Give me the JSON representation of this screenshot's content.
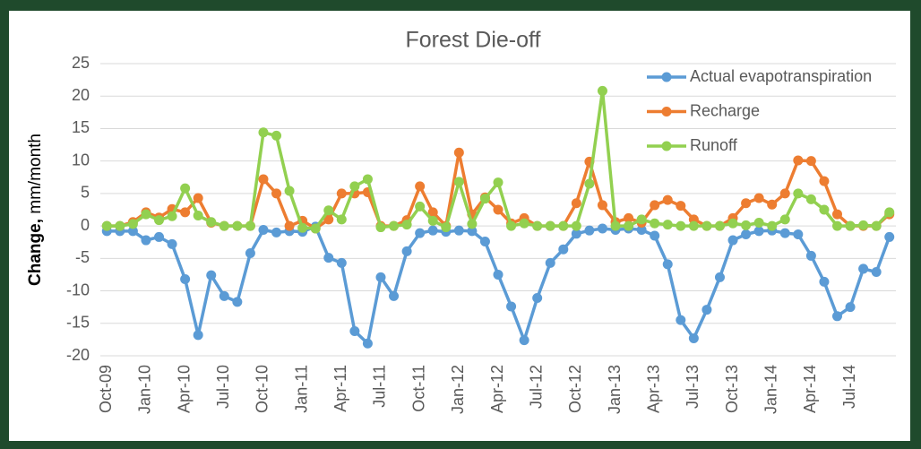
{
  "chart_data": {
    "type": "line",
    "title": "Forest Die-off",
    "y_label_bold": "Change,",
    "y_label": "mm/month",
    "categories": [
      "Oct-09",
      null,
      null,
      "Jan-10",
      null,
      null,
      "Apr-10",
      null,
      null,
      "Jul-10",
      null,
      null,
      "Oct-10",
      null,
      null,
      "Jan-11",
      null,
      null,
      "Apr-11",
      null,
      null,
      "Jul-11",
      null,
      null,
      "Oct-11",
      null,
      null,
      "Jan-12",
      null,
      null,
      "Apr-12",
      null,
      null,
      "Jul-12",
      null,
      null,
      "Oct-12",
      null,
      null,
      "Jan-13",
      null,
      null,
      "Apr-13",
      null,
      null,
      "Jul-13",
      null,
      null,
      "Oct-13",
      null,
      null,
      "Jan-14",
      null,
      null,
      "Apr-14",
      null,
      null,
      "Jul-14",
      null,
      null,
      null
    ],
    "series": [
      {
        "name": "Actual evapotranspiration",
        "color": "#5b9bd5",
        "values": [
          -0.8,
          -0.8,
          -0.8,
          -2.2,
          -1.7,
          -2.8,
          -8.2,
          -16.8,
          -7.6,
          -10.8,
          -11.7,
          -4.2,
          -0.6,
          -1.0,
          -0.8,
          -0.9,
          -0.1,
          -4.9,
          -5.7,
          -16.2,
          -18.1,
          -7.9,
          -10.8,
          -3.9,
          -1.1,
          -0.7,
          -0.9,
          -0.7,
          -0.8,
          -2.4,
          -7.5,
          -12.4,
          -17.6,
          -11.1,
          -5.7,
          -3.6,
          -1.2,
          -0.7,
          -0.4,
          -0.6,
          -0.4,
          -0.6,
          -1.5,
          -5.9,
          -14.5,
          -17.3,
          -12.9,
          -7.9,
          -2.2,
          -1.3,
          -0.8,
          -0.7,
          -1.1,
          -1.3,
          -4.6,
          -8.6,
          -13.9,
          -12.5,
          -6.6,
          -7.1,
          -1.7
        ]
      },
      {
        "name": "Recharge",
        "color": "#ed7d31",
        "values": [
          0,
          0,
          0.6,
          2.1,
          1.3,
          2.6,
          2.1,
          4.3,
          0.5,
          0,
          0,
          0,
          7.2,
          5.0,
          0,
          0.8,
          -0.4,
          1.0,
          5.0,
          5.0,
          5.2,
          0,
          0,
          0.9,
          6.1,
          2.1,
          0,
          11.3,
          1.8,
          4.4,
          2.5,
          0.4,
          1.2,
          0,
          0,
          0,
          3.5,
          9.9,
          3.2,
          0.6,
          1.2,
          0.5,
          3.2,
          4.0,
          3.1,
          1.0,
          0,
          0,
          1.2,
          3.5,
          4.3,
          3.3,
          5.0,
          10.1,
          10.0,
          6.9,
          1.8,
          0,
          0,
          0,
          1.8
        ]
      },
      {
        "name": "Runoff",
        "color": "#92d050",
        "values": [
          0,
          0,
          0.3,
          1.8,
          0.9,
          1.5,
          5.8,
          1.6,
          0.6,
          0,
          0,
          0,
          14.4,
          13.9,
          5.4,
          -0.3,
          -0.4,
          2.4,
          1.0,
          6.1,
          7.2,
          -0.2,
          0,
          0.2,
          3.0,
          0.8,
          -0.2,
          6.8,
          0.3,
          4.2,
          6.7,
          0,
          0.4,
          0,
          0,
          0,
          0,
          6.5,
          20.8,
          0,
          0,
          1.0,
          0.4,
          0.2,
          0,
          0,
          0,
          0,
          0.4,
          0.1,
          0.5,
          0,
          1.0,
          5.0,
          4.1,
          2.5,
          0,
          0,
          0.1,
          0,
          2.1
        ]
      }
    ],
    "ylim": [
      -20,
      25
    ],
    "yticks": [
      -20,
      -15,
      -10,
      -5,
      0,
      5,
      10,
      15,
      20,
      25
    ],
    "grid": true,
    "legend": "top-right"
  }
}
